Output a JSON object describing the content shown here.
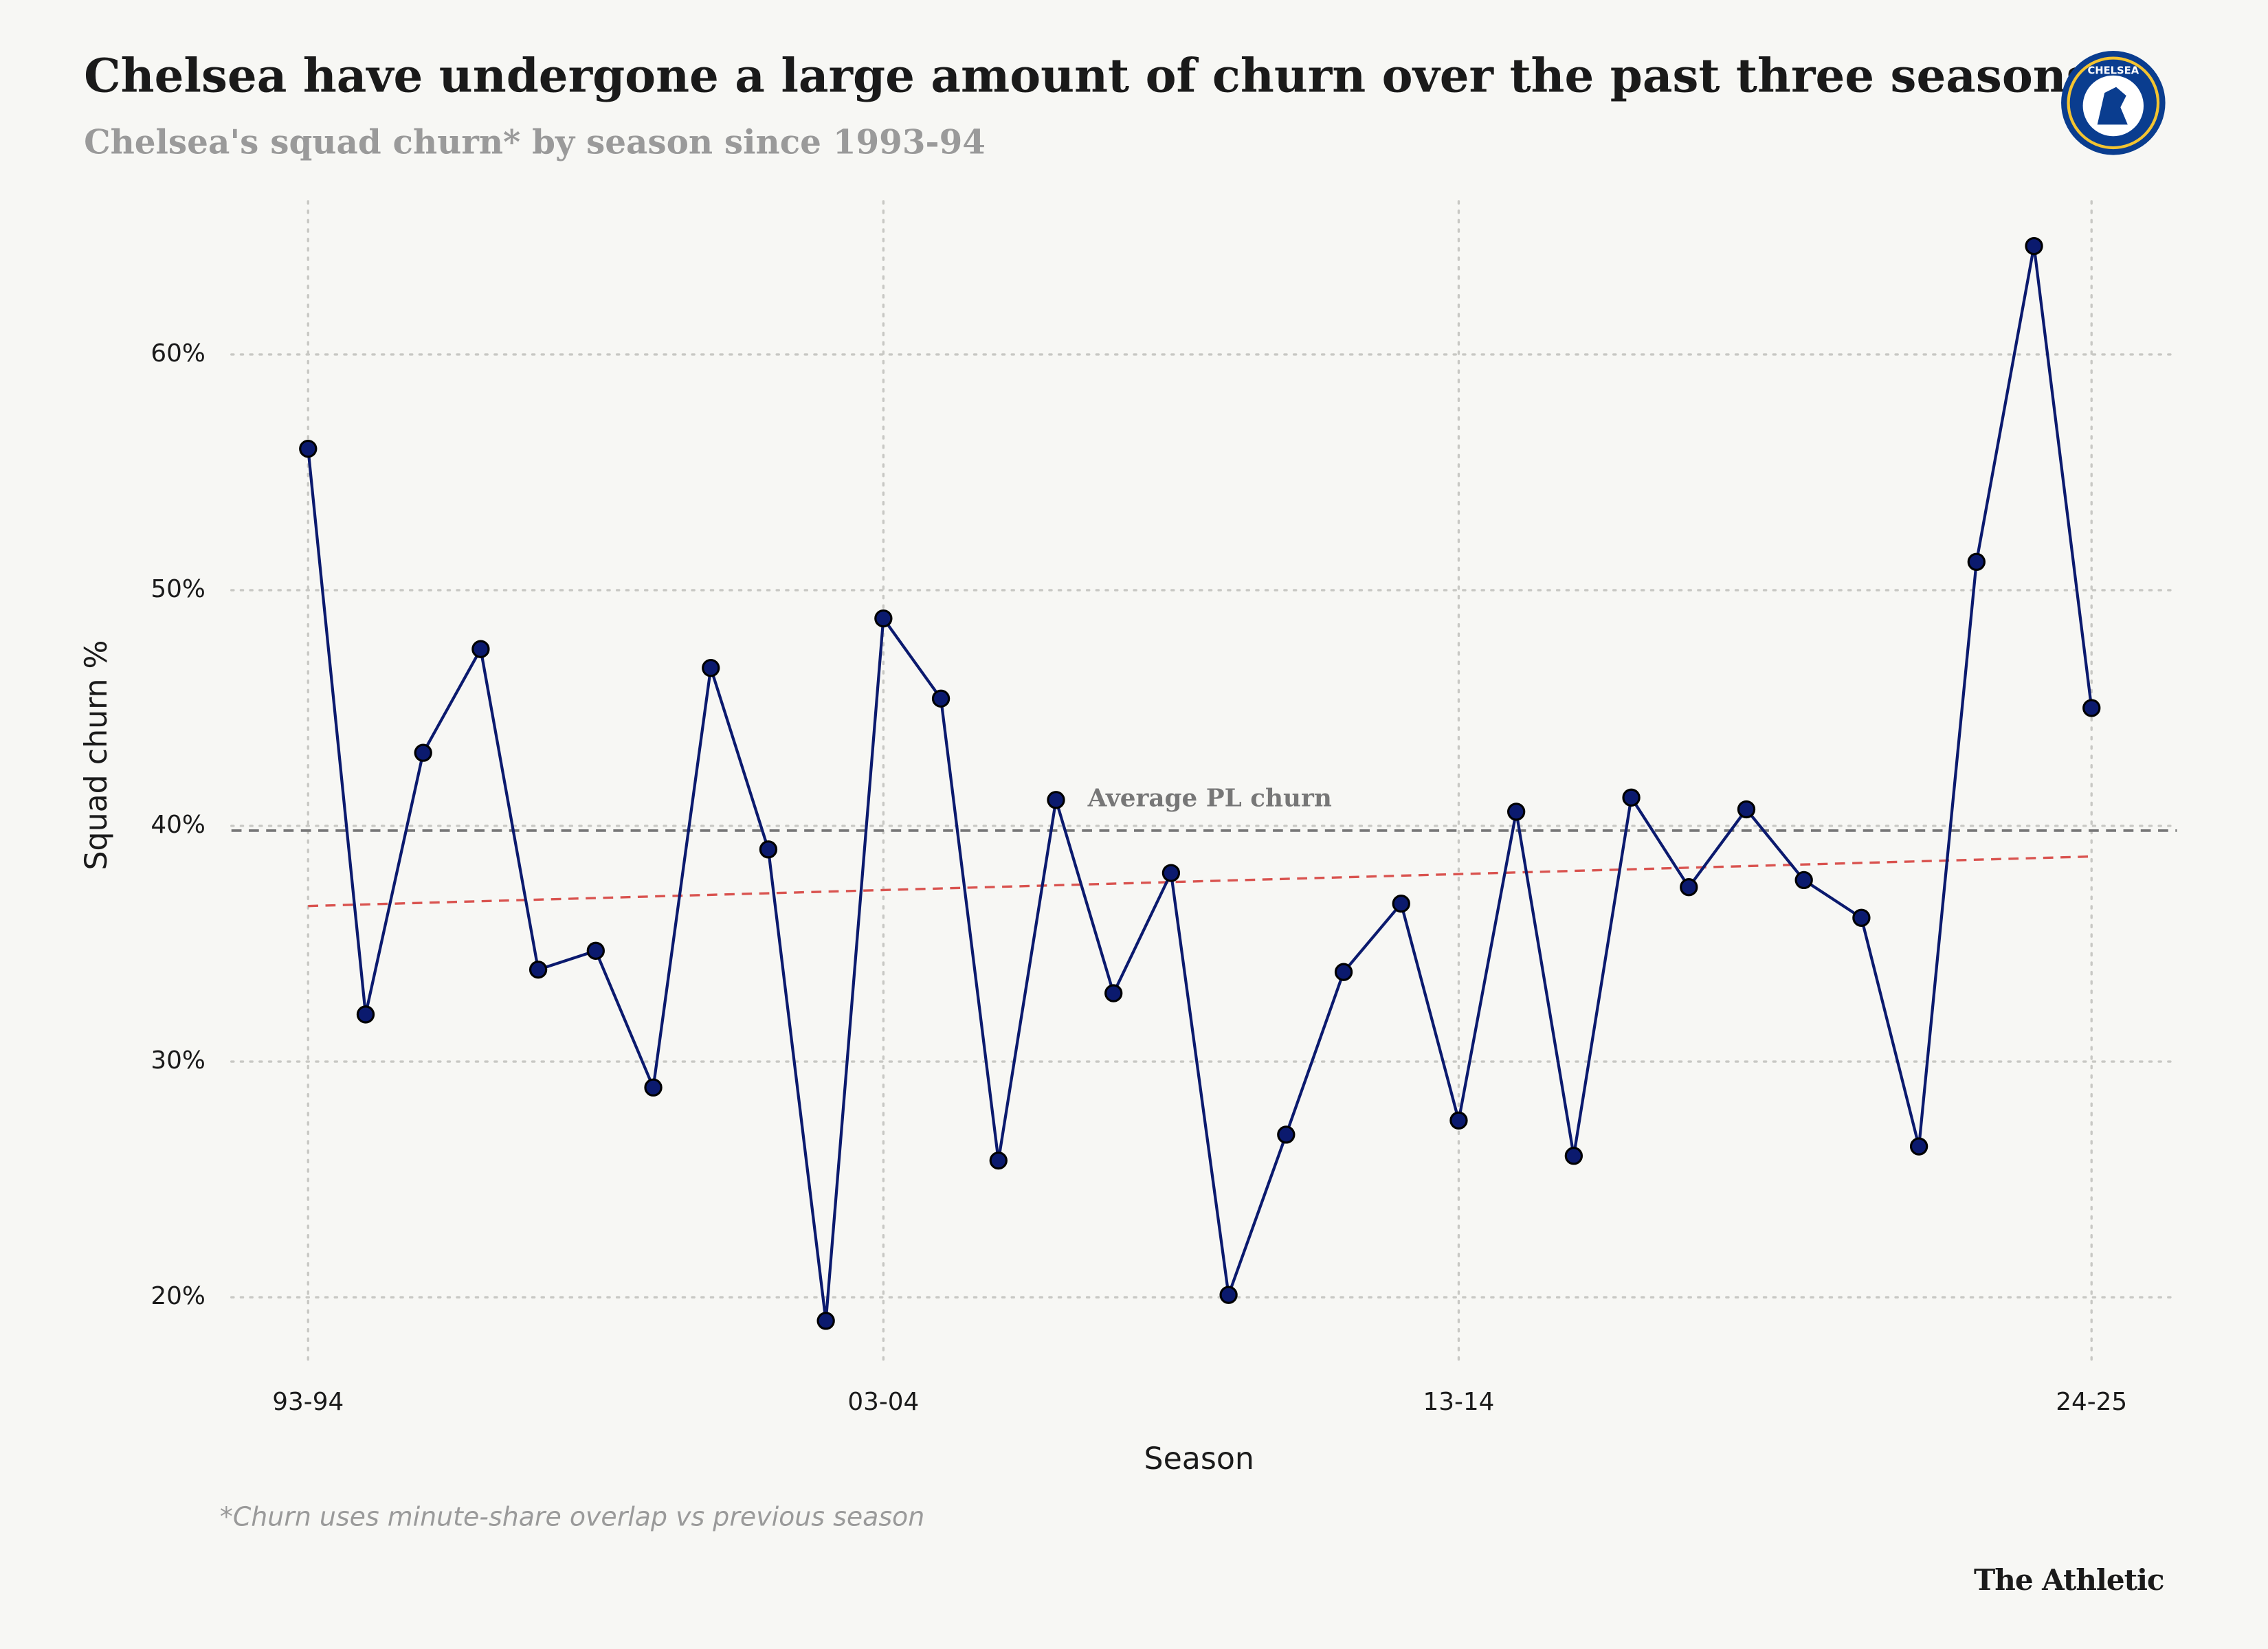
{
  "chart_data": {
    "type": "line",
    "title": "Chelsea have undergone a large amount of churn over the past three seasons",
    "subtitle": "Chelsea's squad churn* by season since 1993-94",
    "x_label": "Season",
    "y_label": "Squad churn %",
    "footnote": "*Churn uses minute-share overlap vs previous season",
    "source": "The Athletic",
    "logo_text": "CHELSEA",
    "categories": [
      "93-94",
      null,
      null,
      null,
      null,
      null,
      null,
      null,
      null,
      null,
      "03-04",
      null,
      null,
      null,
      null,
      null,
      null,
      null,
      null,
      null,
      "13-14",
      null,
      null,
      null,
      null,
      null,
      null,
      null,
      null,
      null,
      null,
      "24-25"
    ],
    "series": [
      {
        "name": "Chelsea",
        "color": "#0b1a6e",
        "values": [
          56.0,
          32.0,
          43.1,
          47.5,
          33.9,
          34.7,
          28.9,
          46.7,
          39.0,
          19.0,
          48.8,
          45.4,
          25.8,
          41.1,
          32.9,
          38.0,
          20.1,
          26.9,
          33.8,
          36.7,
          27.5,
          40.6,
          26.0,
          41.2,
          37.4,
          40.7,
          37.7,
          36.1,
          26.4,
          51.2,
          64.6,
          45.0
        ]
      }
    ],
    "average_line": {
      "label": "Average PL churn",
      "value": 39.8,
      "color": "#777777"
    },
    "trend_line": {
      "start": 36.6,
      "end": 38.7,
      "color": "#d9534f"
    },
    "ylim": [
      16.5,
      66.5
    ],
    "yticks": [
      {
        "value": 20,
        "label": "20%"
      },
      {
        "value": 30,
        "label": "30%"
      },
      {
        "value": 40,
        "label": "40%"
      },
      {
        "value": 50,
        "label": "50%"
      },
      {
        "value": 60,
        "label": "60%"
      }
    ],
    "grid": true
  }
}
